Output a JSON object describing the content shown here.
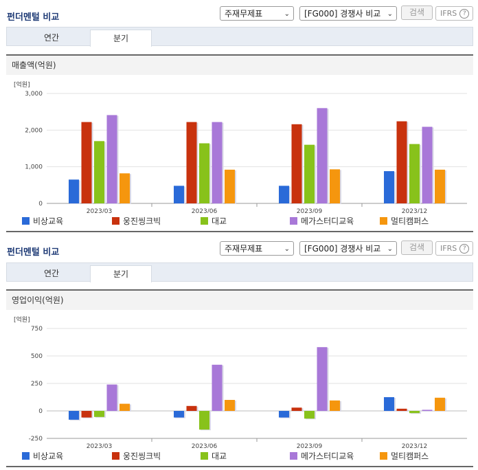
{
  "panels": [
    {
      "header_title": "펀더멘털 비교",
      "select_type": "주재무제표",
      "select_compare": "[FG000] 경쟁사 비교",
      "search_label": "검색",
      "ifrs_label": "IFRS",
      "ifrs_help": "?",
      "tabs": [
        "연간",
        "분기"
      ],
      "active_tab": 1,
      "section_title": "매출액(억원)"
    },
    {
      "header_title": "펀더멘털 비교",
      "select_type": "주재무제표",
      "select_compare": "[FG000] 경쟁사 비교",
      "search_label": "검색",
      "ifrs_label": "IFRS",
      "ifrs_help": "?",
      "tabs": [
        "연간",
        "분기"
      ],
      "active_tab": 1,
      "section_title": "영업이익(억원)"
    }
  ],
  "chart_data": [
    {
      "type": "bar",
      "unit_label": "[억원]",
      "categories": [
        "2023/03",
        "2023/06",
        "2023/09",
        "2023/12"
      ],
      "ylim": [
        0,
        3000
      ],
      "yticks": [
        0,
        1000,
        2000,
        3000
      ],
      "ytick_labels": [
        "0",
        "1,000",
        "2,000",
        "3,000"
      ],
      "legend_position": "bottom",
      "grid": true,
      "series": [
        {
          "name": "비상교육",
          "color": "#2a6ad8",
          "values": [
            650,
            480,
            480,
            880
          ]
        },
        {
          "name": "웅진씽크빅",
          "color": "#c8320e",
          "values": [
            2220,
            2220,
            2160,
            2240
          ]
        },
        {
          "name": "대교",
          "color": "#88c21b",
          "values": [
            1700,
            1640,
            1600,
            1620
          ]
        },
        {
          "name": "메가스터디교육",
          "color": "#a878d8",
          "values": [
            2410,
            2220,
            2600,
            2090
          ]
        },
        {
          "name": "멀티캠퍼스",
          "color": "#f5960e",
          "values": [
            820,
            920,
            930,
            920
          ]
        }
      ]
    },
    {
      "type": "bar",
      "unit_label": "[억원]",
      "categories": [
        "2023/03",
        "2023/06",
        "2023/09",
        "2023/12"
      ],
      "ylim": [
        -250,
        750
      ],
      "yticks": [
        -250,
        0,
        250,
        500,
        750
      ],
      "ytick_labels": [
        "-250",
        "0",
        "250",
        "500",
        "750"
      ],
      "legend_position": "bottom",
      "grid": true,
      "series": [
        {
          "name": "비상교육",
          "color": "#2a6ad8",
          "values": [
            -80,
            -60,
            -60,
            125
          ]
        },
        {
          "name": "웅진씽크빅",
          "color": "#c8320e",
          "values": [
            -60,
            45,
            30,
            20
          ]
        },
        {
          "name": "대교",
          "color": "#88c21b",
          "values": [
            -55,
            -170,
            -70,
            -20
          ]
        },
        {
          "name": "메가스터디교육",
          "color": "#a878d8",
          "values": [
            240,
            420,
            580,
            10
          ]
        },
        {
          "name": "멀티캠퍼스",
          "color": "#f5960e",
          "values": [
            65,
            100,
            95,
            120
          ]
        }
      ]
    }
  ]
}
